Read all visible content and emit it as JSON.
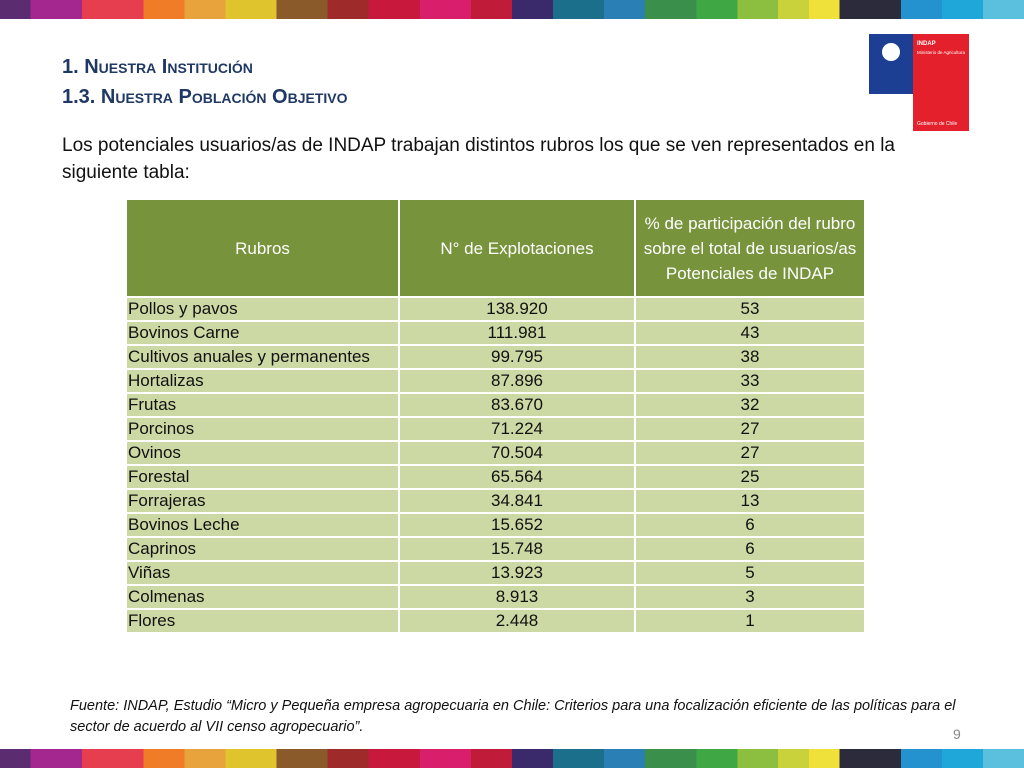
{
  "header": {
    "title": "1. Nuestra Institución",
    "subtitle": "1.3. Nuestra Población Objetivo"
  },
  "logo": {
    "name": "INDAP",
    "ministry": "Ministerio de Agricultura",
    "government": "Gobierno de Chile"
  },
  "intro": "Los potenciales usuarios/as de INDAP trabajan distintos rubros los que se ven representados en la siguiente tabla:",
  "table": {
    "columns": [
      "Rubros",
      "N° de Explotaciones",
      "% de participación del rubro sobre el  total de usuarios/as Potenciales de INDAP"
    ],
    "rows": [
      [
        "Pollos y pavos",
        "138.920",
        "53"
      ],
      [
        "Bovinos Carne",
        "111.981",
        "43"
      ],
      [
        "Cultivos anuales y permanentes",
        "99.795",
        "38"
      ],
      [
        "Hortalizas",
        "87.896",
        "33"
      ],
      [
        "Frutas",
        "83.670",
        "32"
      ],
      [
        "Porcinos",
        "71.224",
        "27"
      ],
      [
        "Ovinos",
        "70.504",
        "27"
      ],
      [
        "Forestal",
        "65.564",
        "25"
      ],
      [
        "Forrajeras",
        "34.841",
        "13"
      ],
      [
        "Bovinos Leche",
        "15.652",
        "6"
      ],
      [
        "Caprinos",
        "15.748",
        "6"
      ],
      [
        "Viñas",
        "13.923",
        "5"
      ],
      [
        "Colmenas",
        "8.913",
        "3"
      ],
      [
        "Flores",
        "2.448",
        "1"
      ]
    ]
  },
  "footnote": "Fuente: INDAP, Estudio “Micro y Pequeña empresa agropecuaria en Chile: Criterios para una focalización eficiente de las políticas para el sector de acuerdo al VII censo agropecuario”.",
  "page_number": "9"
}
